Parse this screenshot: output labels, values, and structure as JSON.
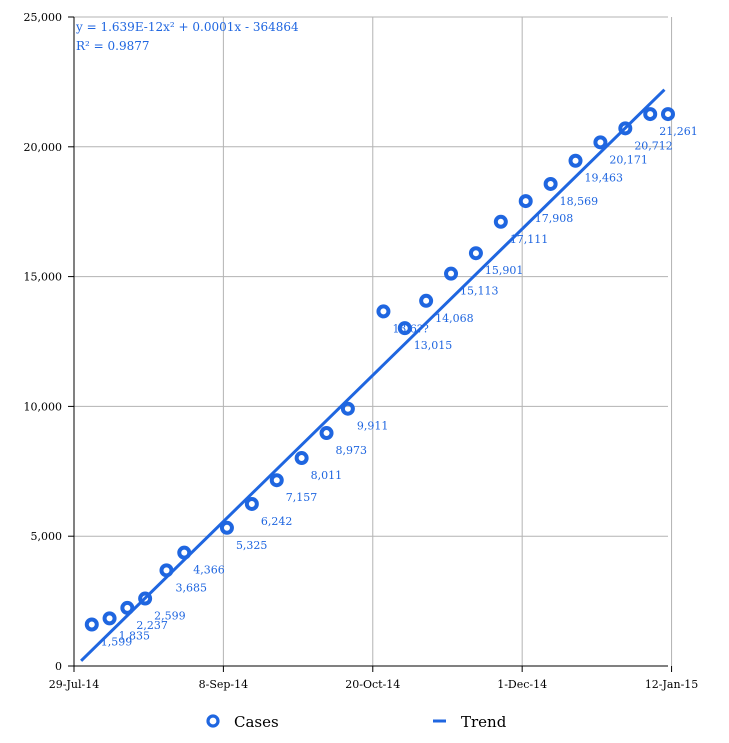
{
  "chart_data": {
    "type": "scatter",
    "x_ticks": [
      "29-Jul-14",
      "8-Sep-14",
      "20-Oct-14",
      "1-Dec-14",
      "12-Jan-15"
    ],
    "x_range": [
      "2014-07-29",
      "2015-01-12"
    ],
    "ylim": [
      0,
      25000
    ],
    "y_ticks": [
      "0",
      "5,000",
      "10,000",
      "15,000",
      "20,000",
      "25,000"
    ],
    "grid": true,
    "series": [
      {
        "name": "Cases",
        "color": "#1f66e0",
        "x": [
          "2014-08-03",
          "2014-08-08",
          "2014-08-13",
          "2014-08-18",
          "2014-08-24",
          "2014-08-29",
          "2014-09-10",
          "2014-09-17",
          "2014-09-24",
          "2014-10-01",
          "2014-10-08",
          "2014-10-14",
          "2014-10-24",
          "2014-10-30",
          "2014-11-05",
          "2014-11-12",
          "2014-11-19",
          "2014-11-26",
          "2014-12-03",
          "2014-12-10",
          "2014-12-17",
          "2014-12-24",
          "2014-12-31",
          "2015-01-07",
          "2015-01-12"
        ],
        "values": [
          1599,
          1835,
          2237,
          2599,
          3685,
          4366,
          5325,
          6242,
          7157,
          8011,
          8973,
          9911,
          13659,
          13015,
          14068,
          15113,
          15901,
          17111,
          17908,
          18569,
          19463,
          20171,
          20712,
          21261,
          21261
        ],
        "labels": [
          "1,599",
          "1,835",
          "2,237",
          "2,599",
          "3,685",
          "4,366",
          "5,325",
          "6,242",
          "7,157",
          "8,011",
          "8,973",
          "9,911",
          "13,6??",
          "13,015",
          "14,068",
          "15,113",
          "15,901",
          "17,111",
          "17,908",
          "18,569",
          "19,463",
          "20,171",
          "20,712",
          "21,261",
          ""
        ]
      },
      {
        "name": "Trend",
        "type": "line",
        "color": "#1f66e0",
        "x": [
          "2014-07-31",
          "2015-01-11"
        ],
        "values": [
          200,
          22200
        ]
      }
    ],
    "annotations": [
      "y = 1.639E-12x² + 0.0001x - 364864",
      "R² = 0.9877"
    ],
    "legend_position": "bottom"
  }
}
